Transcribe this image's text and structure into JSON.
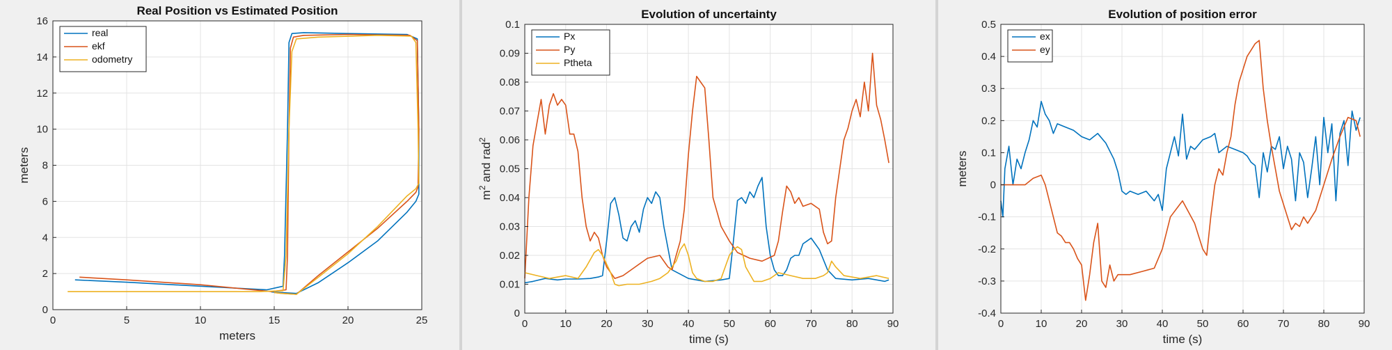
{
  "charts": [
    {
      "type": "line",
      "title": "Real Position vs Estimated Position",
      "xlabel": "meters",
      "ylabel": "meters",
      "xlim": [
        0,
        25
      ],
      "ylim": [
        0,
        16
      ],
      "xticks": [
        0,
        5,
        10,
        15,
        20,
        25
      ],
      "yticks": [
        0,
        2,
        4,
        6,
        8,
        10,
        12,
        14,
        16
      ],
      "grid": true,
      "legend": "top-left",
      "series": [
        {
          "name": "real",
          "color": "#0072BD",
          "x": [
            1.5,
            5,
            10,
            14.5,
            15.6,
            15.7,
            15.9,
            16.0,
            16.2,
            17,
            20,
            24,
            24.7,
            24.8,
            24.8,
            24.6,
            24,
            22,
            20,
            18,
            16.5,
            15.5,
            14.8
          ],
          "y": [
            1.65,
            1.52,
            1.3,
            1.1,
            1.3,
            3,
            10,
            14.8,
            15.3,
            15.35,
            15.3,
            15.25,
            15.0,
            10,
            6.4,
            6.0,
            5.4,
            3.8,
            2.6,
            1.5,
            0.9,
            0.95,
            0.98
          ]
        },
        {
          "name": "ekf",
          "color": "#D95319",
          "x": [
            1.8,
            5,
            10,
            14.8,
            15.8,
            15.9,
            16.0,
            16.1,
            16.3,
            17,
            20,
            24.2,
            24.7,
            24.8,
            24.75,
            24.6,
            24,
            22,
            20,
            18,
            16.5,
            15.6,
            15.0
          ],
          "y": [
            1.8,
            1.65,
            1.38,
            1.0,
            1.1,
            3,
            10,
            14.5,
            15.1,
            15.2,
            15.25,
            15.2,
            14.9,
            10,
            6.8,
            6.5,
            6.0,
            4.5,
            3.2,
            1.9,
            0.85,
            0.9,
            0.95
          ]
        },
        {
          "name": "odometry",
          "color": "#EDB120",
          "x": [
            1.0,
            5,
            10,
            14,
            15.6,
            15.8,
            16.0,
            16.2,
            16.5,
            18,
            22,
            24.3,
            24.6,
            24.75,
            24.8,
            24.6,
            24,
            22,
            20,
            18,
            16.5,
            15.5,
            15.0
          ],
          "y": [
            1.0,
            1.0,
            1.0,
            1.0,
            1.05,
            3,
            10,
            14.3,
            15.0,
            15.1,
            15.2,
            15.15,
            14.8,
            10,
            7.0,
            6.7,
            6.3,
            4.6,
            3.1,
            1.8,
            0.85,
            0.9,
            0.95
          ]
        }
      ]
    },
    {
      "type": "line",
      "title": "Evolution of uncertainty",
      "xlabel": "time (s)",
      "ylabel_main": "m",
      "ylabel_sup1": "2",
      "ylabel_mid": " and rad",
      "ylabel_sup2": "2",
      "xlim": [
        0,
        90
      ],
      "ylim": [
        0,
        0.1
      ],
      "xticks": [
        0,
        10,
        20,
        30,
        40,
        50,
        60,
        70,
        80,
        90
      ],
      "yticks": [
        0,
        0.01,
        0.02,
        0.03,
        0.04,
        0.05,
        0.06,
        0.07,
        0.08,
        0.09,
        0.1
      ],
      "grid": true,
      "legend": "top-left",
      "series": [
        {
          "name": "Px",
          "color": "#0072BD",
          "x": [
            0,
            2,
            5,
            8,
            10,
            13,
            16,
            18,
            19,
            20,
            21,
            22,
            23,
            24,
            25,
            26,
            27,
            28,
            29,
            30,
            31,
            32,
            33,
            34,
            36,
            40,
            44,
            48,
            50,
            51,
            52,
            53,
            54,
            55,
            56,
            57,
            58,
            59,
            60,
            61,
            62,
            63,
            64,
            65,
            66,
            67,
            68,
            69,
            70,
            71,
            72,
            74,
            76,
            80,
            84,
            88,
            89
          ],
          "y": [
            0.0105,
            0.011,
            0.012,
            0.0115,
            0.0118,
            0.0118,
            0.012,
            0.0125,
            0.013,
            0.025,
            0.038,
            0.04,
            0.034,
            0.026,
            0.025,
            0.03,
            0.032,
            0.028,
            0.036,
            0.04,
            0.038,
            0.042,
            0.04,
            0.03,
            0.015,
            0.012,
            0.011,
            0.0115,
            0.012,
            0.025,
            0.039,
            0.04,
            0.038,
            0.042,
            0.04,
            0.044,
            0.047,
            0.03,
            0.02,
            0.015,
            0.013,
            0.013,
            0.015,
            0.019,
            0.02,
            0.02,
            0.024,
            0.025,
            0.026,
            0.024,
            0.022,
            0.015,
            0.012,
            0.0115,
            0.012,
            0.011,
            0.0115
          ]
        },
        {
          "name": "Py",
          "color": "#D95319",
          "x": [
            0,
            1,
            2,
            3,
            4,
            5,
            6,
            7,
            8,
            9,
            10,
            11,
            12,
            13,
            14,
            15,
            16,
            17,
            18,
            19,
            20,
            22,
            24,
            27,
            30,
            33,
            35,
            36,
            37,
            38,
            39,
            40,
            41,
            42,
            43,
            44,
            45,
            46,
            47,
            48,
            50,
            52,
            55,
            58,
            61,
            62,
            63,
            64,
            65,
            66,
            67,
            68,
            70,
            72,
            73,
            74,
            75,
            76,
            77,
            78,
            79,
            80,
            81,
            82,
            83,
            84,
            85,
            86,
            87,
            88,
            89
          ],
          "y": [
            0.012,
            0.04,
            0.058,
            0.066,
            0.074,
            0.062,
            0.072,
            0.076,
            0.072,
            0.074,
            0.072,
            0.062,
            0.062,
            0.056,
            0.04,
            0.03,
            0.025,
            0.028,
            0.026,
            0.02,
            0.016,
            0.012,
            0.013,
            0.016,
            0.019,
            0.02,
            0.016,
            0.015,
            0.02,
            0.025,
            0.036,
            0.055,
            0.07,
            0.082,
            0.08,
            0.078,
            0.06,
            0.04,
            0.035,
            0.03,
            0.025,
            0.021,
            0.019,
            0.018,
            0.02,
            0.025,
            0.035,
            0.044,
            0.042,
            0.038,
            0.04,
            0.037,
            0.038,
            0.036,
            0.028,
            0.024,
            0.025,
            0.04,
            0.05,
            0.06,
            0.064,
            0.07,
            0.074,
            0.068,
            0.08,
            0.07,
            0.09,
            0.072,
            0.067,
            0.06,
            0.052
          ]
        },
        {
          "name": "Ptheta",
          "color": "#EDB120",
          "x": [
            0,
            3,
            6,
            10,
            13,
            15,
            17,
            18,
            19,
            21,
            22,
            23,
            25,
            28,
            31,
            33,
            35,
            37,
            38,
            39,
            40,
            41,
            42,
            44,
            46,
            48,
            50,
            51,
            52,
            53,
            54,
            56,
            58,
            60,
            62,
            65,
            68,
            71,
            73,
            74,
            75,
            76,
            78,
            82,
            86,
            89
          ],
          "y": [
            0.014,
            0.013,
            0.012,
            0.013,
            0.012,
            0.016,
            0.021,
            0.022,
            0.02,
            0.014,
            0.01,
            0.0095,
            0.01,
            0.01,
            0.011,
            0.012,
            0.014,
            0.018,
            0.022,
            0.024,
            0.02,
            0.014,
            0.012,
            0.011,
            0.011,
            0.012,
            0.02,
            0.022,
            0.023,
            0.022,
            0.016,
            0.011,
            0.011,
            0.012,
            0.014,
            0.013,
            0.012,
            0.012,
            0.013,
            0.014,
            0.018,
            0.016,
            0.013,
            0.012,
            0.013,
            0.012
          ]
        }
      ]
    },
    {
      "type": "line",
      "title": "Evolution of position error",
      "xlabel": "time (s)",
      "ylabel": "meters",
      "xlim": [
        0,
        90
      ],
      "ylim": [
        -0.4,
        0.5
      ],
      "xticks": [
        0,
        10,
        20,
        30,
        40,
        50,
        60,
        70,
        80,
        90
      ],
      "yticks": [
        -0.4,
        -0.3,
        -0.2,
        -0.1,
        0,
        0.1,
        0.2,
        0.3,
        0.4,
        0.5
      ],
      "grid": true,
      "legend": "top-left",
      "series": [
        {
          "name": "ex",
          "color": "#0072BD",
          "x": [
            0,
            0.5,
            1,
            2,
            3,
            4,
            5,
            6,
            7,
            8,
            9,
            10,
            11,
            12,
            13,
            14,
            16,
            18,
            20,
            22,
            24,
            26,
            28,
            29,
            30,
            31,
            32,
            34,
            36,
            38,
            39,
            40,
            41,
            42,
            43,
            44,
            45,
            46,
            47,
            48,
            50,
            52,
            53,
            54,
            56,
            58,
            60,
            61,
            62,
            63,
            64,
            65,
            66,
            67,
            68,
            69,
            70,
            71,
            72,
            73,
            74,
            75,
            76,
            77,
            78,
            79,
            80,
            81,
            82,
            83,
            84,
            85,
            86,
            87,
            88,
            89
          ],
          "y": [
            -0.05,
            -0.1,
            0.05,
            0.12,
            0.0,
            0.08,
            0.05,
            0.1,
            0.14,
            0.2,
            0.18,
            0.26,
            0.22,
            0.2,
            0.16,
            0.19,
            0.18,
            0.17,
            0.15,
            0.14,
            0.16,
            0.13,
            0.08,
            0.04,
            -0.02,
            -0.03,
            -0.02,
            -0.03,
            -0.02,
            -0.05,
            -0.03,
            -0.08,
            0.05,
            0.1,
            0.15,
            0.09,
            0.22,
            0.08,
            0.12,
            0.11,
            0.14,
            0.15,
            0.16,
            0.1,
            0.12,
            0.11,
            0.1,
            0.09,
            0.07,
            0.06,
            -0.04,
            0.1,
            0.04,
            0.12,
            0.11,
            0.15,
            0.05,
            0.12,
            0.08,
            -0.05,
            0.1,
            0.07,
            -0.04,
            0.05,
            0.15,
            0.0,
            0.21,
            0.1,
            0.19,
            -0.05,
            0.16,
            0.2,
            0.06,
            0.23,
            0.17,
            0.21
          ]
        },
        {
          "name": "ey",
          "color": "#D95319",
          "x": [
            0,
            3,
            6,
            8,
            10,
            11,
            12,
            13,
            14,
            15,
            16,
            17,
            18,
            19,
            20,
            21,
            22,
            23,
            24,
            25,
            26,
            27,
            28,
            29,
            30,
            32,
            35,
            38,
            40,
            42,
            45,
            48,
            50,
            51,
            52,
            53,
            54,
            55,
            56,
            57,
            58,
            59,
            60,
            61,
            62,
            63,
            64,
            65,
            66,
            67,
            68,
            69,
            70,
            71,
            72,
            73,
            74,
            75,
            76,
            77,
            78,
            80,
            82,
            84,
            86,
            88,
            89
          ],
          "y": [
            0.0,
            0.0,
            0.0,
            0.02,
            0.03,
            0.0,
            -0.05,
            -0.1,
            -0.15,
            -0.16,
            -0.18,
            -0.18,
            -0.2,
            -0.23,
            -0.25,
            -0.36,
            -0.28,
            -0.18,
            -0.12,
            -0.3,
            -0.32,
            -0.25,
            -0.3,
            -0.28,
            -0.28,
            -0.28,
            -0.27,
            -0.26,
            -0.2,
            -0.1,
            -0.05,
            -0.12,
            -0.2,
            -0.22,
            -0.1,
            0.0,
            0.05,
            0.03,
            0.1,
            0.15,
            0.25,
            0.32,
            0.36,
            0.4,
            0.42,
            0.44,
            0.45,
            0.3,
            0.2,
            0.12,
            0.05,
            -0.02,
            -0.06,
            -0.1,
            -0.14,
            -0.12,
            -0.13,
            -0.1,
            -0.12,
            -0.1,
            -0.08,
            0.0,
            0.08,
            0.15,
            0.21,
            0.2,
            0.15
          ]
        }
      ]
    }
  ]
}
